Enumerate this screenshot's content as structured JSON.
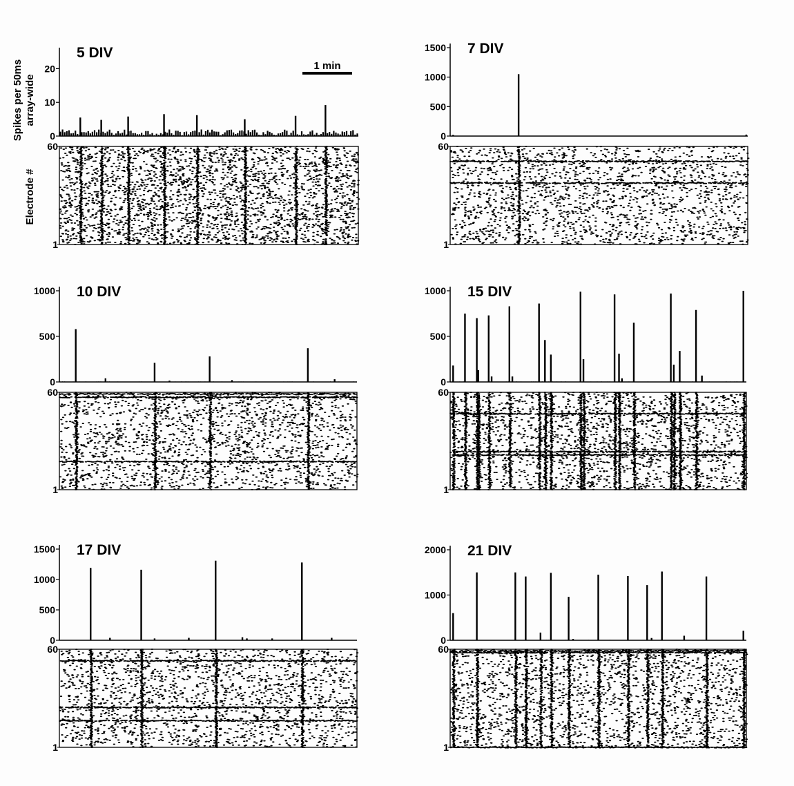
{
  "figure": {
    "ylabel_top": [
      "Spikes per 50ms",
      "array-wide"
    ],
    "ylabel_bottom": "Electrode #",
    "scale_bar_label": "1 min"
  },
  "chart_data": [
    {
      "type": "bar",
      "title": "5 DIV",
      "ylim": [
        0,
        25
      ],
      "yticks": [
        0,
        10,
        20
      ],
      "raster_ticks": [
        "1",
        "60"
      ],
      "xlim": [
        0,
        100
      ],
      "baseline": 1.1,
      "bursts": [
        [
          7,
          5.5
        ],
        [
          14,
          4.8
        ],
        [
          23,
          5.8
        ],
        [
          35,
          6.5
        ],
        [
          46,
          6.2
        ],
        [
          62,
          5.0
        ],
        [
          79,
          6.0
        ],
        [
          89,
          9.2
        ]
      ],
      "burst_bands": []
    },
    {
      "type": "bar",
      "title": "7 DIV",
      "ylim": [
        0,
        1500
      ],
      "yticks": [
        0,
        500,
        1000,
        1500
      ],
      "raster_ticks": [
        "1",
        "60"
      ],
      "xlim": [
        0,
        100
      ],
      "baseline": 3,
      "bursts": [
        [
          1,
          20
        ],
        [
          23,
          1050
        ],
        [
          99.5,
          25
        ]
      ],
      "burst_bands": [
        38,
        51
      ]
    },
    {
      "type": "bar",
      "title": "10 DIV",
      "ylim": [
        0,
        1000
      ],
      "yticks": [
        0,
        500,
        1000
      ],
      "raster_ticks": [
        "1",
        "60"
      ],
      "xlim": [
        0,
        100
      ],
      "baseline": 3,
      "bursts": [
        [
          5.5,
          580
        ],
        [
          15.5,
          40
        ],
        [
          32,
          210
        ],
        [
          37,
          15
        ],
        [
          50.5,
          280
        ],
        [
          58,
          20
        ],
        [
          83.5,
          370
        ],
        [
          92.5,
          30
        ]
      ],
      "burst_bands": [
        18,
        57,
        59
      ]
    },
    {
      "type": "bar",
      "title": "15 DIV",
      "ylim": [
        0,
        1000
      ],
      "yticks": [
        0,
        500,
        1000
      ],
      "raster_ticks": [
        "1",
        "60"
      ],
      "xlim": [
        0,
        100
      ],
      "baseline": 3,
      "bursts": [
        [
          1,
          180
        ],
        [
          5,
          750
        ],
        [
          9,
          700
        ],
        [
          9.5,
          130
        ],
        [
          13,
          730
        ],
        [
          14,
          60
        ],
        [
          20,
          830
        ],
        [
          21,
          60
        ],
        [
          30,
          860
        ],
        [
          32,
          460
        ],
        [
          34,
          300
        ],
        [
          44,
          990
        ],
        [
          45,
          250
        ],
        [
          55.5,
          960
        ],
        [
          57,
          310
        ],
        [
          58,
          40
        ],
        [
          62,
          650
        ],
        [
          74.5,
          970
        ],
        [
          75.5,
          190
        ],
        [
          77.5,
          340
        ],
        [
          83,
          790
        ],
        [
          85,
          70
        ],
        [
          99,
          1000
        ]
      ],
      "burst_bands": [
        22,
        24,
        47
      ]
    },
    {
      "type": "bar",
      "title": "17 DIV",
      "ylim": [
        0,
        1500
      ],
      "yticks": [
        0,
        500,
        1000,
        1500
      ],
      "raster_ticks": [
        "1",
        "60"
      ],
      "xlim": [
        0,
        100
      ],
      "baseline": 3,
      "bursts": [
        [
          10.5,
          1190
        ],
        [
          17,
          40
        ],
        [
          27.5,
          1160
        ],
        [
          32,
          30
        ],
        [
          43.5,
          40
        ],
        [
          52.5,
          1310
        ],
        [
          61.5,
          50
        ],
        [
          63,
          30
        ],
        [
          71.5,
          30
        ],
        [
          81.5,
          1280
        ],
        [
          91.5,
          40
        ]
      ],
      "burst_bands": [
        17,
        25,
        53
      ]
    },
    {
      "type": "bar",
      "title": "21 DIV",
      "ylim": [
        0,
        2000
      ],
      "yticks": [
        0,
        1000,
        2000
      ],
      "raster_ticks": [
        "1",
        "60"
      ],
      "xlim": [
        0,
        100
      ],
      "baseline": 5,
      "bursts": [
        [
          1,
          600
        ],
        [
          9,
          1500
        ],
        [
          22,
          1500
        ],
        [
          25.5,
          1410
        ],
        [
          30.5,
          170
        ],
        [
          34,
          1490
        ],
        [
          40,
          960
        ],
        [
          41.5,
          30
        ],
        [
          50,
          1450
        ],
        [
          60,
          1420
        ],
        [
          66.5,
          1220
        ],
        [
          68,
          50
        ],
        [
          71.5,
          1520
        ],
        [
          79,
          100
        ],
        [
          86.5,
          1410
        ],
        [
          99,
          210
        ]
      ],
      "burst_bands": [
        1,
        58,
        59
      ]
    }
  ]
}
